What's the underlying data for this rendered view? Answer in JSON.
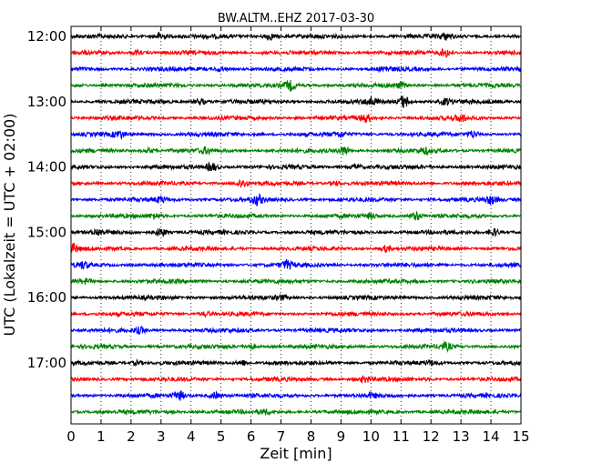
{
  "chart_data": {
    "type": "line",
    "title": "BW.ALTM..EHZ 2017-03-30",
    "xlabel": "Zeit  [min]",
    "ylabel": "UTC (Lokalzeit = UTC + 02:00)",
    "xlim": [
      0,
      15
    ],
    "x_ticks": [
      0,
      1,
      2,
      3,
      4,
      5,
      6,
      7,
      8,
      9,
      10,
      11,
      12,
      13,
      14,
      15
    ],
    "x_tick_labels": [
      "0",
      "1",
      "2",
      "3",
      "4",
      "5",
      "6",
      "7",
      "8",
      "9",
      "10",
      "11",
      "12",
      "13",
      "14",
      "15"
    ],
    "y_tick_labels": [
      "12:00",
      "13:00",
      "14:00",
      "15:00",
      "16:00",
      "17:00"
    ],
    "vertical_grid": true,
    "grid_style": "dotted",
    "trace_color_cycle": [
      "#000000",
      "#ff0000",
      "#0000ff",
      "#008000"
    ],
    "traces": [
      {
        "start": "12:00",
        "color": "#000000",
        "events": [
          [
            3.0,
            2.0
          ],
          [
            6.6,
            2.0
          ],
          [
            12.5,
            1.4
          ]
        ]
      },
      {
        "start": "12:15",
        "color": "#ff0000",
        "events": [
          [
            12.5,
            2.2
          ],
          [
            2.2,
            1.2
          ]
        ]
      },
      {
        "start": "12:30",
        "color": "#0000ff",
        "events": [
          [
            5.0,
            1.2
          ],
          [
            10.5,
            1.2
          ]
        ]
      },
      {
        "start": "12:45",
        "color": "#008000",
        "events": [
          [
            7.3,
            2.6
          ],
          [
            11.0,
            1.2
          ]
        ]
      },
      {
        "start": "13:00",
        "color": "#000000",
        "events": [
          [
            11.1,
            3.6
          ],
          [
            10.0,
            2.2
          ],
          [
            4.3,
            1.6
          ],
          [
            12.5,
            1.6
          ]
        ]
      },
      {
        "start": "13:15",
        "color": "#ff0000",
        "events": [
          [
            9.8,
            2.0
          ],
          [
            13.0,
            1.6
          ]
        ]
      },
      {
        "start": "13:30",
        "color": "#0000ff",
        "events": [
          [
            1.6,
            1.8
          ],
          [
            13.4,
            2.0
          ],
          [
            9.0,
            1.2
          ]
        ]
      },
      {
        "start": "13:45",
        "color": "#008000",
        "events": [
          [
            9.1,
            2.4
          ],
          [
            4.5,
            1.4
          ],
          [
            11.8,
            1.4
          ],
          [
            2.6,
            1.2
          ]
        ]
      },
      {
        "start": "14:00",
        "color": "#000000",
        "events": [
          [
            4.7,
            2.2
          ],
          [
            9.5,
            1.4
          ]
        ]
      },
      {
        "start": "14:15",
        "color": "#ff0000",
        "events": [
          [
            5.7,
            2.0
          ],
          [
            8.8,
            1.2
          ]
        ]
      },
      {
        "start": "14:30",
        "color": "#0000ff",
        "events": [
          [
            6.2,
            2.6
          ],
          [
            3.0,
            1.4
          ],
          [
            14.0,
            2.0
          ]
        ]
      },
      {
        "start": "14:45",
        "color": "#008000",
        "events": [
          [
            11.5,
            2.4
          ],
          [
            2.8,
            1.4
          ],
          [
            10.0,
            1.2
          ]
        ]
      },
      {
        "start": "15:00",
        "color": "#000000",
        "events": [
          [
            3.0,
            2.4
          ],
          [
            14.1,
            2.0
          ],
          [
            0.9,
            1.4
          ]
        ]
      },
      {
        "start": "15:15",
        "color": "#ff0000",
        "events": [
          [
            0.1,
            2.0
          ],
          [
            10.5,
            1.6
          ]
        ]
      },
      {
        "start": "15:30",
        "color": "#0000ff",
        "events": [
          [
            7.2,
            2.2
          ],
          [
            0.4,
            1.6
          ]
        ]
      },
      {
        "start": "15:45",
        "color": "#008000",
        "events": [
          [
            0.5,
            1.2
          ]
        ]
      },
      {
        "start": "16:00",
        "color": "#000000",
        "events": [
          [
            7.0,
            1.0
          ]
        ]
      },
      {
        "start": "16:15",
        "color": "#ff0000",
        "events": [
          [
            4.5,
            1.0
          ]
        ]
      },
      {
        "start": "16:30",
        "color": "#0000ff",
        "events": [
          [
            2.3,
            1.6
          ]
        ]
      },
      {
        "start": "16:45",
        "color": "#008000",
        "events": [
          [
            12.5,
            1.8
          ],
          [
            6.0,
            1.2
          ]
        ]
      },
      {
        "start": "17:00",
        "color": "#000000",
        "events": [
          [
            5.7,
            1.6
          ],
          [
            2.2,
            1.2
          ],
          [
            12.0,
            1.0
          ]
        ]
      },
      {
        "start": "17:15",
        "color": "#ff0000",
        "events": [
          [
            9.8,
            1.6
          ]
        ]
      },
      {
        "start": "17:30",
        "color": "#0000ff",
        "events": [
          [
            3.6,
            2.4
          ],
          [
            4.8,
            1.8
          ],
          [
            10.0,
            1.0
          ]
        ]
      },
      {
        "start": "17:45",
        "color": "#008000",
        "events": [
          [
            6.5,
            1.0
          ]
        ]
      }
    ]
  }
}
